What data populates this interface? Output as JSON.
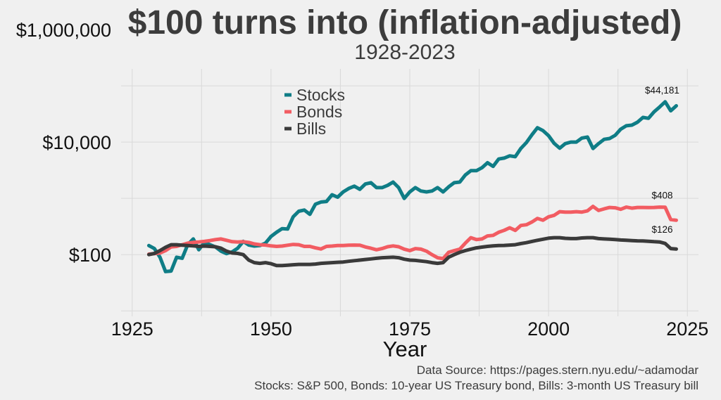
{
  "chart_data": {
    "type": "line",
    "title": "$100 turns into (inflation-adjusted)",
    "subtitle": "1928-2023",
    "xlabel": "Year",
    "ylabel": "",
    "yscale": "log",
    "xlim": [
      1923,
      2027
    ],
    "ylim": [
      8,
      200000
    ],
    "x_ticks": [
      1925,
      1950,
      1975,
      2000,
      2025
    ],
    "y_ticks": [
      {
        "value": 100,
        "label": "$100"
      },
      {
        "value": 10000,
        "label": "$10,000"
      },
      {
        "value": 1000000,
        "label": "$1,000,000"
      }
    ],
    "grid": true,
    "legend_position": "top-center",
    "x": [
      1928,
      1929,
      1930,
      1931,
      1932,
      1933,
      1934,
      1935,
      1936,
      1937,
      1938,
      1939,
      1940,
      1941,
      1942,
      1943,
      1944,
      1945,
      1946,
      1947,
      1948,
      1949,
      1950,
      1951,
      1952,
      1953,
      1954,
      1955,
      1956,
      1957,
      1958,
      1959,
      1960,
      1961,
      1962,
      1963,
      1964,
      1965,
      1966,
      1967,
      1968,
      1969,
      1970,
      1971,
      1972,
      1973,
      1974,
      1975,
      1976,
      1977,
      1978,
      1979,
      1980,
      1981,
      1982,
      1983,
      1984,
      1985,
      1986,
      1987,
      1988,
      1989,
      1990,
      1991,
      1992,
      1993,
      1994,
      1995,
      1996,
      1997,
      1998,
      1999,
      2000,
      2001,
      2002,
      2003,
      2004,
      2005,
      2006,
      2007,
      2008,
      2009,
      2010,
      2011,
      2012,
      2013,
      2014,
      2015,
      2016,
      2017,
      2018,
      2019,
      2020,
      2021,
      2022,
      2023
    ],
    "series": [
      {
        "name": "Stocks",
        "color": "#0f7d86",
        "end_label": "$44,181",
        "values": [
          145,
          128,
          90,
          50,
          51,
          90,
          86,
          150,
          190,
          122,
          165,
          150,
          137,
          115,
          104,
          112,
          130,
          172,
          148,
          142,
          145,
          160,
          210,
          250,
          290,
          285,
          470,
          590,
          620,
          520,
          790,
          860,
          880,
          1160,
          1050,
          1300,
          1500,
          1650,
          1450,
          1800,
          1900,
          1550,
          1550,
          1700,
          1950,
          1550,
          1000,
          1300,
          1550,
          1350,
          1300,
          1350,
          1550,
          1300,
          1600,
          1900,
          1950,
          2600,
          3100,
          3100,
          3500,
          4300,
          3700,
          5000,
          5200,
          5700,
          5500,
          7700,
          9800,
          13500,
          18000,
          16000,
          13000,
          9500,
          7800,
          9400,
          10000,
          10000,
          11800,
          12300,
          7700,
          9400,
          11200,
          11600,
          13200,
          17000,
          19500,
          20000,
          22500,
          27500,
          26500,
          34500,
          42000,
          52000,
          36000,
          44181
        ]
      },
      {
        "name": "Bonds",
        "color": "#f25c62",
        "end_label": "$408",
        "values": [
          102,
          104,
          107,
          118,
          137,
          140,
          150,
          160,
          165,
          168,
          172,
          178,
          185,
          190,
          180,
          170,
          168,
          170,
          165,
          155,
          150,
          148,
          143,
          140,
          142,
          147,
          152,
          150,
          140,
          140,
          132,
          126,
          140,
          142,
          145,
          145,
          147,
          148,
          147,
          137,
          130,
          122,
          128,
          138,
          143,
          138,
          125,
          118,
          128,
          125,
          115,
          100,
          88,
          85,
          110,
          118,
          125,
          160,
          200,
          185,
          190,
          215,
          220,
          250,
          270,
          300,
          270,
          330,
          340,
          380,
          440,
          410,
          470,
          500,
          580,
          570,
          570,
          580,
          570,
          600,
          720,
          610,
          650,
          690,
          680,
          640,
          700,
          670,
          690,
          690,
          685,
          690,
          700,
          695,
          420,
          408
        ]
      },
      {
        "name": "Bills",
        "color": "#3a3a3a",
        "end_label": "$126",
        "values": [
          100,
          105,
          118,
          135,
          150,
          150,
          147,
          145,
          143,
          140,
          142,
          140,
          138,
          130,
          115,
          107,
          105,
          100,
          80,
          72,
          70,
          72,
          69,
          64,
          64,
          65,
          66,
          67,
          67,
          67,
          68,
          70,
          71,
          72,
          73,
          74,
          76,
          78,
          80,
          82,
          84,
          86,
          88,
          89,
          90,
          88,
          83,
          80,
          79,
          77,
          75,
          72,
          70,
          72,
          90,
          100,
          110,
          118,
          125,
          132,
          136,
          140,
          143,
          145,
          146,
          148,
          150,
          157,
          163,
          172,
          180,
          188,
          196,
          200,
          200,
          195,
          193,
          193,
          198,
          200,
          200,
          193,
          190,
          188,
          185,
          182,
          180,
          178,
          176,
          175,
          173,
          170,
          168,
          158,
          128,
          126
        ]
      }
    ]
  },
  "source_line_1": "Data Source: https://pages.stern.nyu.edu/~adamodar",
  "source_line_2": "Stocks: S&P 500, Bonds: 10-year US Treasury bond, Bills: 3-month US Treasury bill"
}
